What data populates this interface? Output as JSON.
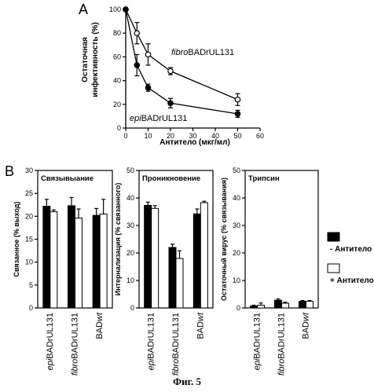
{
  "panel_a": {
    "letter": "A",
    "ylabel_line1": "Остаточная",
    "ylabel_line2": "инфективность (%)",
    "xlabel": "Антитело (мкг/мл)",
    "series_labels": [
      {
        "prefix": "fibro",
        "suffix": "BADrUL131"
      },
      {
        "prefix": "epi",
        "suffix": "BADrUL131"
      }
    ]
  },
  "panel_b": {
    "letter": "B",
    "legend": {
      "black": "- Антитело",
      "white": "+ Антитело"
    }
  },
  "caption": "Фиг. 5",
  "chart_data": [
    {
      "type": "line",
      "xlabel": "Антитело (мкг/мл)",
      "ylabel": "Остаточная инфективность (%)",
      "xlim": [
        0,
        60
      ],
      "ylim": [
        0,
        100
      ],
      "xticks": [
        0,
        10,
        20,
        30,
        40,
        50,
        60
      ],
      "yticks": [
        0,
        20,
        40,
        60,
        80,
        100
      ],
      "series": [
        {
          "name": "fibroBADrUL131",
          "marker": "open-circle",
          "x": [
            0,
            5,
            10,
            20,
            50
          ],
          "y": [
            100,
            80,
            62,
            48,
            24
          ],
          "err": [
            0,
            9,
            9,
            3,
            5
          ]
        },
        {
          "name": "epiBADrUL131",
          "marker": "filled-circle",
          "x": [
            0,
            5,
            10,
            20,
            50
          ],
          "y": [
            100,
            53,
            34,
            21,
            12
          ],
          "err": [
            0,
            9,
            3,
            4,
            3
          ]
        }
      ]
    },
    {
      "type": "bar",
      "title": "Связывыание",
      "ylabel": "Связанное (% выход)",
      "ylim": [
        0,
        30
      ],
      "yticks": [
        0,
        5,
        10,
        15,
        20,
        25,
        30
      ],
      "categories": [
        {
          "prefix": "epi",
          "suffix": "BADrUL131"
        },
        {
          "prefix": "fibro",
          "suffix": "BADrUL131"
        },
        {
          "prefix": "BAD",
          "suffix": "wt"
        }
      ],
      "series": [
        {
          "name": "- Антитело",
          "color": "#000000",
          "values": [
            22.2,
            22.3,
            20.2
          ],
          "err": [
            1.5,
            1.8,
            1.5
          ]
        },
        {
          "name": "+ Антитело",
          "color": "#ffffff",
          "values": [
            21.0,
            19.6,
            20.5
          ],
          "err": [
            0.4,
            2.0,
            3.2
          ]
        }
      ]
    },
    {
      "type": "bar",
      "title": "Проникновение",
      "ylabel": "Интернализация (% связанного)",
      "ylim": [
        0,
        50
      ],
      "yticks": [
        0,
        10,
        20,
        30,
        40,
        50
      ],
      "categories": [
        {
          "prefix": "epi",
          "suffix": "BADrUL131"
        },
        {
          "prefix": "fibro",
          "suffix": "BADrUL131"
        },
        {
          "prefix": "BAD",
          "suffix": "wt"
        }
      ],
      "series": [
        {
          "name": "- Антитело",
          "color": "#000000",
          "values": [
            37.3,
            22.0,
            34.2
          ],
          "err": [
            1.2,
            1.2,
            1.8
          ]
        },
        {
          "name": "+ Антитело",
          "color": "#ffffff",
          "values": [
            36.2,
            18.0,
            38.3
          ],
          "err": [
            1.0,
            2.8,
            0.5
          ]
        }
      ]
    },
    {
      "type": "bar",
      "title": "Трипсин",
      "ylabel": "Остаточный вирус (% связывания)",
      "ylim": [
        0,
        50
      ],
      "yticks": [
        0,
        10,
        20,
        30,
        40,
        50
      ],
      "categories": [
        {
          "prefix": "epi",
          "suffix": "BADrUL131"
        },
        {
          "prefix": "fibro",
          "suffix": "BADrUL131"
        },
        {
          "prefix": "BAD",
          "suffix": "wt"
        }
      ],
      "series": [
        {
          "name": "- Антитело",
          "color": "#000000",
          "values": [
            0.7,
            2.8,
            2.4
          ],
          "err": [
            0.3,
            0.5,
            0.3
          ]
        },
        {
          "name": "+ Антитело",
          "color": "#ffffff",
          "values": [
            1.0,
            1.7,
            2.4
          ],
          "err": [
            0.8,
            0.4,
            0.3
          ]
        }
      ]
    }
  ]
}
